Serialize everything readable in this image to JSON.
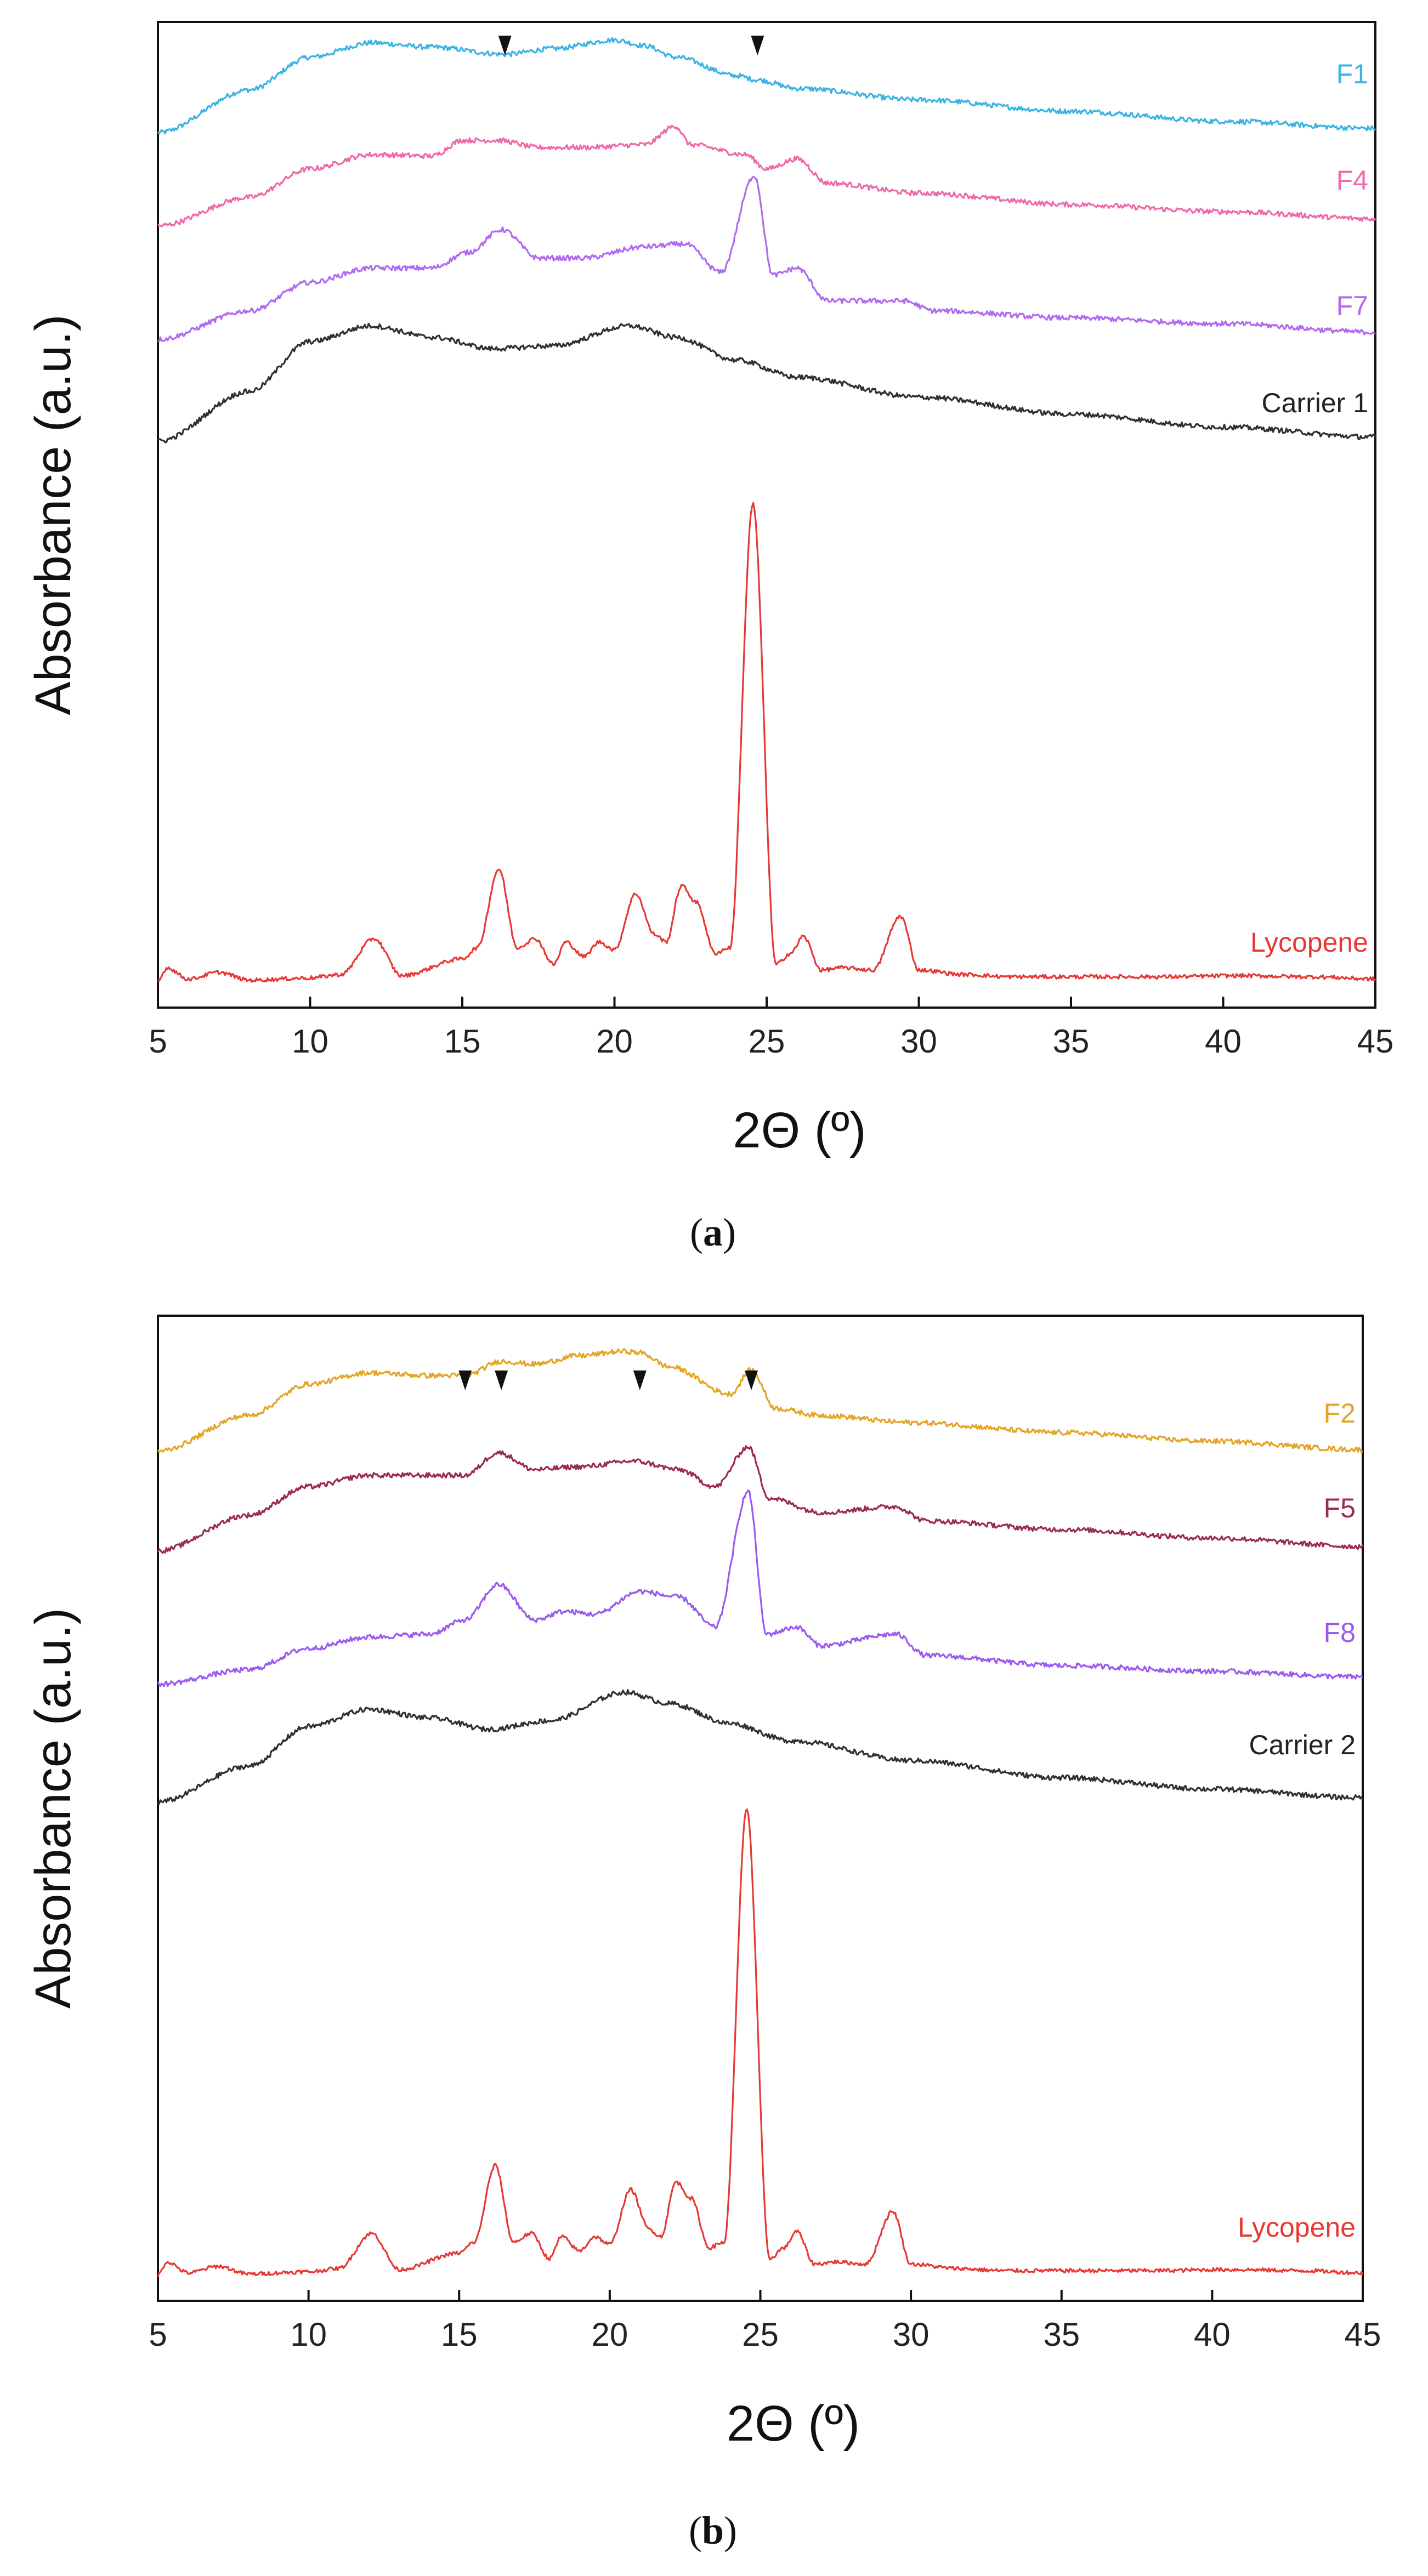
{
  "chart_data": [
    {
      "panel": "a",
      "type": "line",
      "xlabel": "2Θ (º)",
      "ylabel": "Absorbance (a.u.)",
      "xlim": [
        5,
        45
      ],
      "xticks": [
        5,
        10,
        15,
        20,
        25,
        30,
        35,
        40,
        45
      ],
      "yticks": [],
      "arrow_markers_2theta": [
        16.4,
        24.7
      ],
      "series": [
        {
          "name": "F1",
          "color": "#3BB3E3",
          "x": [
            5,
            8,
            10,
            12,
            14,
            16.4,
            18,
            20,
            21,
            22,
            24,
            24.7,
            26,
            30,
            35,
            40,
            45
          ],
          "y": [
            0.05,
            0.35,
            0.58,
            0.68,
            0.65,
            0.6,
            0.64,
            0.7,
            0.66,
            0.58,
            0.45,
            0.42,
            0.36,
            0.28,
            0.2,
            0.13,
            0.08
          ]
        },
        {
          "name": "F4",
          "color": "#EE6AA7",
          "x": [
            5,
            8,
            10,
            12,
            14,
            15,
            16.2,
            17.5,
            19,
            21,
            22,
            22.5,
            24.3,
            25,
            26,
            27,
            30,
            35,
            40,
            45
          ],
          "y": [
            0.05,
            0.25,
            0.45,
            0.55,
            0.54,
            0.65,
            0.65,
            0.6,
            0.6,
            0.62,
            0.75,
            0.62,
            0.55,
            0.45,
            0.52,
            0.35,
            0.28,
            0.2,
            0.15,
            0.1
          ]
        },
        {
          "name": "F7",
          "color": "#B06AF0",
          "x": [
            5,
            8,
            10,
            12,
            14,
            15.2,
            16.3,
            17.5,
            19,
            21,
            22.3,
            23.5,
            24.6,
            25.2,
            26,
            27,
            29.5,
            30.5,
            35,
            40,
            45
          ],
          "y": [
            0.05,
            0.25,
            0.45,
            0.55,
            0.55,
            0.66,
            0.82,
            0.62,
            0.62,
            0.7,
            0.72,
            0.52,
            1.2,
            0.5,
            0.55,
            0.32,
            0.32,
            0.25,
            0.2,
            0.16,
            0.1
          ]
        },
        {
          "name": "Carrier 1",
          "color": "#303030",
          "x": [
            5,
            8,
            10,
            12,
            14,
            16,
            18,
            20.5,
            22,
            24,
            26,
            30,
            35,
            40,
            45
          ],
          "y": [
            0.05,
            0.4,
            0.75,
            0.86,
            0.78,
            0.7,
            0.72,
            0.86,
            0.78,
            0.62,
            0.5,
            0.36,
            0.24,
            0.15,
            0.08
          ]
        },
        {
          "name": "Lycopene",
          "color": "#E53935",
          "x": [
            5,
            5.3,
            6,
            7,
            8,
            10,
            11,
            12.1,
            13,
            15,
            15.5,
            16.2,
            16.8,
            17.4,
            18,
            18.4,
            19,
            19.5,
            20,
            20.7,
            21.3,
            21.7,
            22.2,
            22.7,
            23.3,
            23.8,
            24.55,
            25.3,
            25.8,
            26.2,
            26.8,
            27.5,
            28.5,
            29.4,
            30,
            31.5,
            33,
            35,
            38,
            40.5,
            43,
            45
          ],
          "y": [
            0,
            0.12,
            0.02,
            0.08,
            0.01,
            0.03,
            0.06,
            0.38,
            0.05,
            0.2,
            0.3,
            1.0,
            0.3,
            0.38,
            0.15,
            0.35,
            0.22,
            0.35,
            0.28,
            0.78,
            0.42,
            0.35,
            0.85,
            0.7,
            0.25,
            0.3,
            4.25,
            0.15,
            0.25,
            0.4,
            0.1,
            0.12,
            0.1,
            0.58,
            0.1,
            0.06,
            0.04,
            0.04,
            0.04,
            0.05,
            0.04,
            0.02
          ]
        }
      ]
    },
    {
      "panel": "b",
      "type": "line",
      "xlabel": "2Θ (º)",
      "ylabel": "Absorbance (a.u.)",
      "xlim": [
        5,
        45
      ],
      "xticks": [
        5,
        10,
        15,
        20,
        25,
        30,
        35,
        40,
        45
      ],
      "yticks": [],
      "arrow_markers_2theta": [
        15.2,
        16.4,
        21.0,
        24.7
      ],
      "series": [
        {
          "name": "F2",
          "color": "#E2A526",
          "x": [
            5,
            8,
            10,
            12,
            14,
            15.2,
            16.4,
            17.5,
            19,
            20.5,
            21,
            22,
            24,
            24.7,
            25.5,
            27,
            30,
            35,
            40,
            45
          ],
          "y": [
            0.05,
            0.3,
            0.52,
            0.6,
            0.58,
            0.58,
            0.68,
            0.66,
            0.72,
            0.75,
            0.74,
            0.64,
            0.45,
            0.62,
            0.35,
            0.3,
            0.25,
            0.18,
            0.12,
            0.06
          ]
        },
        {
          "name": "F5",
          "color": "#9A2A5A",
          "x": [
            5,
            8,
            10,
            12,
            14,
            15.2,
            16.3,
            17.5,
            19,
            20.8,
            22.3,
            23.5,
            24.6,
            25.3,
            27,
            29.5,
            30.5,
            35,
            40,
            45
          ],
          "y": [
            0.05,
            0.3,
            0.5,
            0.58,
            0.58,
            0.58,
            0.74,
            0.62,
            0.64,
            0.68,
            0.62,
            0.5,
            0.78,
            0.42,
            0.32,
            0.36,
            0.26,
            0.2,
            0.14,
            0.08
          ]
        },
        {
          "name": "F8",
          "color": "#9B59F0",
          "x": [
            5,
            8,
            10,
            12,
            14,
            15.2,
            16.3,
            17.5,
            18.5,
            19.5,
            21,
            22.3,
            23.5,
            24.6,
            25.2,
            26.2,
            27,
            29.5,
            30.5,
            35,
            40,
            45
          ],
          "y": [
            0.05,
            0.15,
            0.3,
            0.38,
            0.4,
            0.5,
            0.75,
            0.5,
            0.56,
            0.54,
            0.7,
            0.66,
            0.45,
            1.4,
            0.4,
            0.45,
            0.32,
            0.4,
            0.25,
            0.18,
            0.14,
            0.1
          ]
        },
        {
          "name": "Carrier 2",
          "color": "#303030",
          "x": [
            5,
            8,
            10,
            12,
            14,
            16,
            18,
            20.5,
            22,
            24,
            26,
            30,
            35,
            40,
            45
          ],
          "y": [
            0.05,
            0.3,
            0.58,
            0.7,
            0.64,
            0.56,
            0.62,
            0.82,
            0.74,
            0.6,
            0.48,
            0.34,
            0.22,
            0.14,
            0.08
          ]
        },
        {
          "name": "Lycopene",
          "color": "#E53935",
          "x": [
            5,
            5.3,
            6,
            7,
            8,
            10,
            11,
            12.1,
            13,
            15,
            15.5,
            16.2,
            16.8,
            17.4,
            18,
            18.4,
            19,
            19.5,
            20,
            20.7,
            21.3,
            21.7,
            22.2,
            22.7,
            23.3,
            23.8,
            24.55,
            25.3,
            25.8,
            26.2,
            26.8,
            27.5,
            28.5,
            29.4,
            30,
            31.5,
            33,
            35,
            38,
            40.5,
            43,
            45
          ],
          "y": [
            0,
            0.12,
            0.02,
            0.08,
            0.01,
            0.03,
            0.06,
            0.38,
            0.05,
            0.2,
            0.3,
            1.0,
            0.3,
            0.38,
            0.15,
            0.35,
            0.22,
            0.35,
            0.28,
            0.78,
            0.42,
            0.35,
            0.85,
            0.7,
            0.25,
            0.3,
            4.25,
            0.15,
            0.25,
            0.4,
            0.1,
            0.12,
            0.1,
            0.58,
            0.1,
            0.06,
            0.04,
            0.04,
            0.04,
            0.05,
            0.04,
            0.02
          ]
        }
      ]
    }
  ],
  "captions": [
    "(a)",
    "(b)"
  ]
}
